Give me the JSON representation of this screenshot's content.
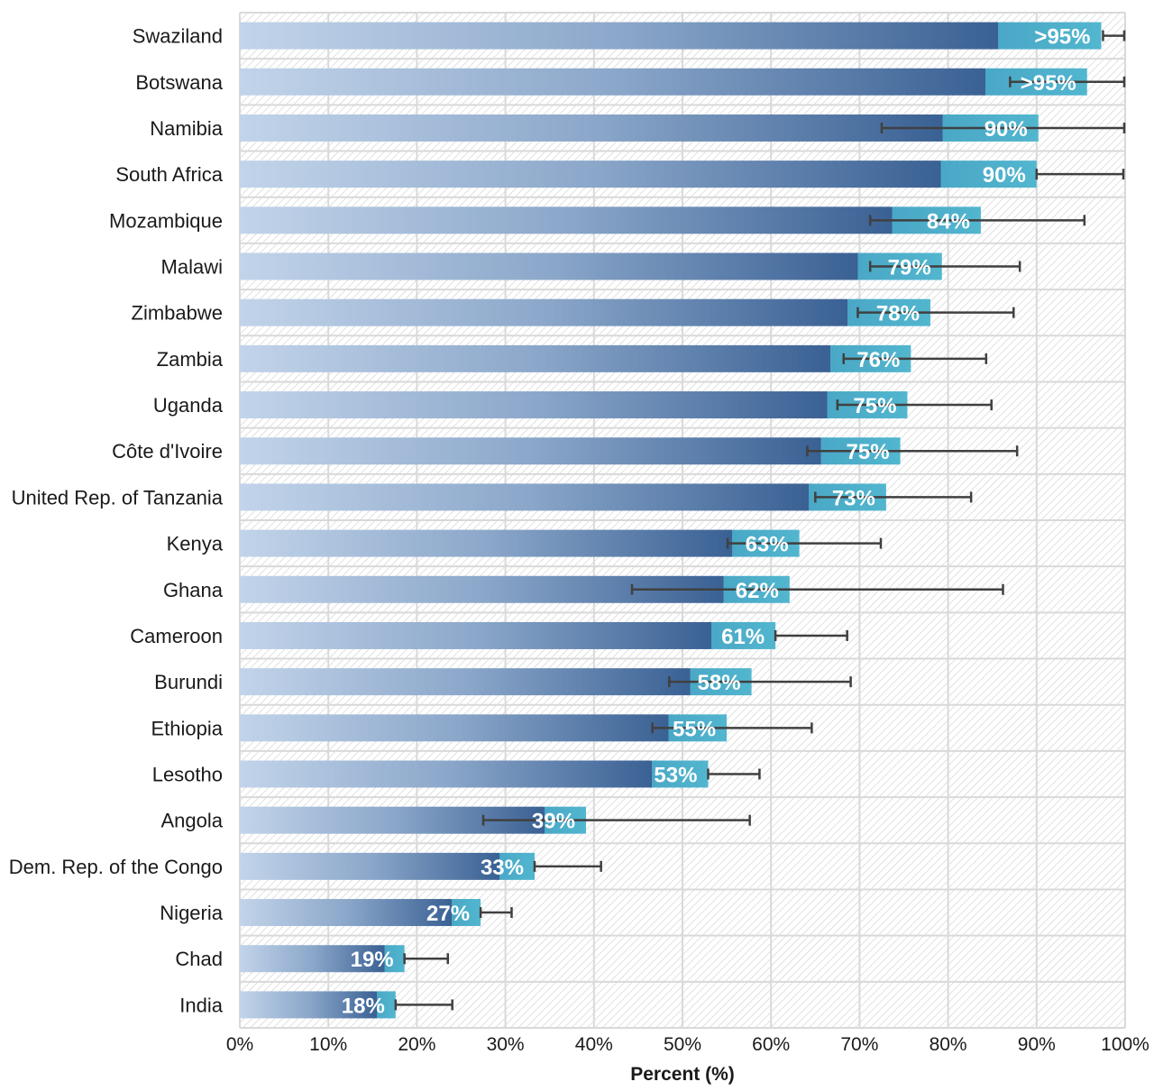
{
  "chart_data": {
    "type": "bar",
    "orientation": "horizontal",
    "title": "",
    "xlabel": "Percent (%)",
    "ylabel": "",
    "xlim": [
      0,
      100
    ],
    "x_ticks": [
      "0%",
      "10%",
      "20%",
      "30%",
      "40%",
      "50%",
      "60%",
      "70%",
      "80%",
      "90%",
      "100%"
    ],
    "grid": true,
    "legend": "none",
    "categories": [
      "Swaziland",
      "Botswana",
      "Namibia",
      "South Africa",
      "Mozambique",
      "Malawi",
      "Zimbabwe",
      "Zambia",
      "Uganda",
      "Côte d'Ivoire",
      "United Rep. of Tanzania",
      "Kenya",
      "Ghana",
      "Cameroon",
      "Burundi",
      "Ethiopia",
      "Lesotho",
      "Angola",
      "Dem. Rep. of the Congo",
      "Nigeria",
      "Chad",
      "India"
    ],
    "values": [
      97.3,
      95.7,
      90.2,
      90.0,
      83.7,
      79.3,
      78.0,
      75.8,
      75.4,
      74.6,
      73.0,
      63.2,
      62.1,
      60.5,
      57.8,
      55.0,
      52.9,
      39.1,
      33.3,
      27.2,
      18.6,
      17.6
    ],
    "error_low": [
      97.5,
      87.0,
      72.5,
      90.0,
      71.2,
      71.2,
      69.8,
      68.2,
      67.5,
      64.1,
      65.0,
      55.1,
      44.3,
      60.5,
      48.5,
      46.6,
      52.9,
      27.5,
      33.3,
      27.2,
      18.6,
      17.6
    ],
    "error_high": [
      99.9,
      99.9,
      99.9,
      99.8,
      95.4,
      88.1,
      87.4,
      84.3,
      84.9,
      87.8,
      82.6,
      72.4,
      86.2,
      68.6,
      69.0,
      64.6,
      58.7,
      57.6,
      40.8,
      30.7,
      23.5,
      24.0
    ],
    "data_labels": [
      ">95%",
      ">95%",
      "90%",
      "90%",
      "84%",
      "79%",
      "78%",
      "76%",
      "75%",
      "75%",
      "73%",
      "63%",
      "62%",
      "61%",
      "58%",
      "55%",
      "53%",
      "39%",
      "33%",
      "27%",
      "19%",
      "18%"
    ],
    "colors": {
      "bar_start": "#c2d4ea",
      "bar_mid": "#7f9cc2",
      "bar_dark": "#3a6194",
      "bar_end_cap": "#4ab0c8",
      "error_bar": "#404040",
      "grid": "#d9d9d9",
      "hatch": "#d4d4d4"
    }
  }
}
